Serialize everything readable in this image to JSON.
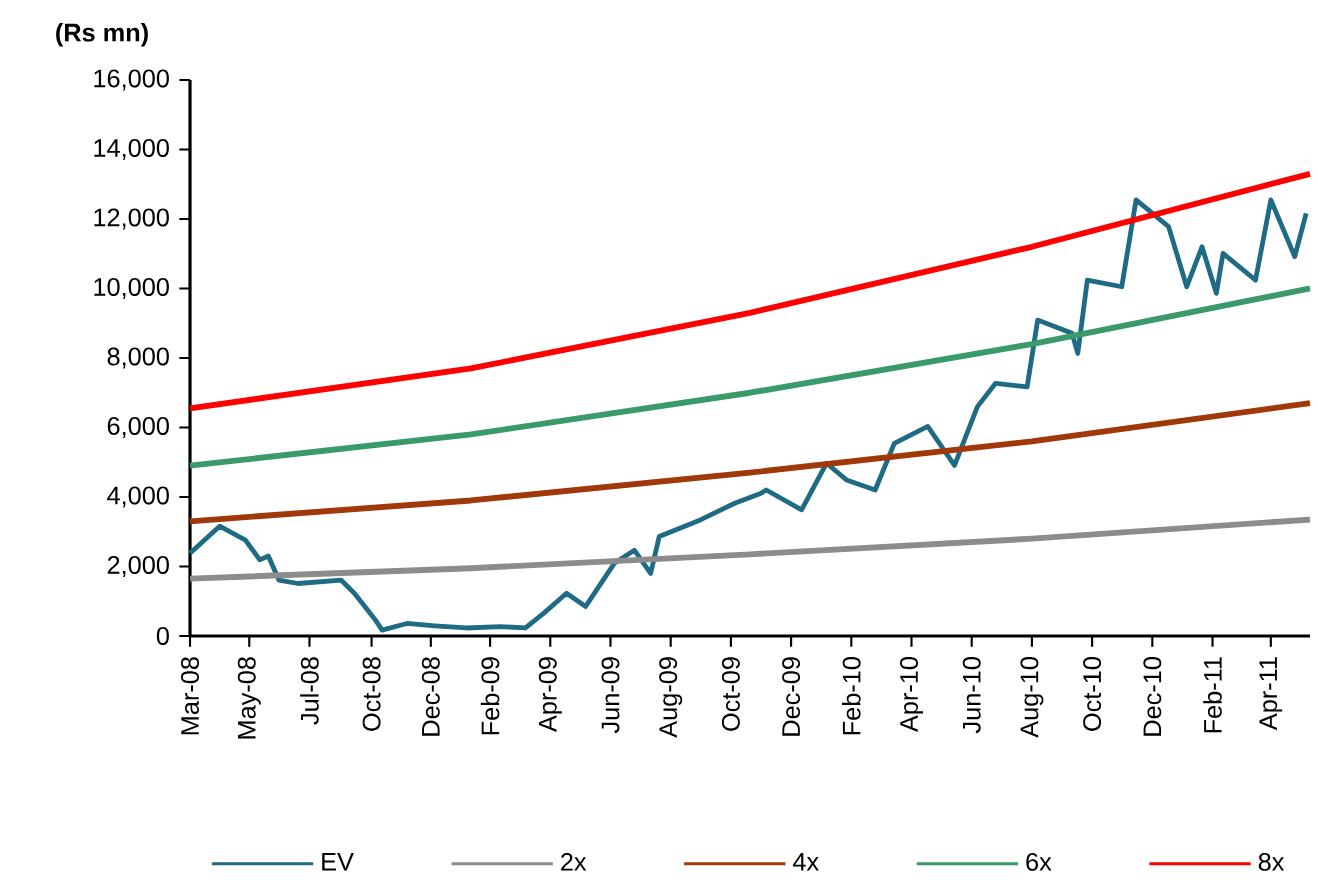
{
  "chart_data": {
    "type": "line",
    "ylabel": "(Rs mn)",
    "xlim": [
      "2008-03-25",
      "2011-06-10"
    ],
    "xticks": [
      {
        "value": "2008-03-25",
        "label": "Mar-08"
      },
      {
        "value": "2008-05-26",
        "label": "May-08"
      },
      {
        "value": "2008-07-28",
        "label": "Jul-08"
      },
      {
        "value": "2008-10-01",
        "label": "Oct-08"
      },
      {
        "value": "2008-12-02",
        "label": "Dec-08"
      },
      {
        "value": "2009-02-02",
        "label": "Feb-09"
      },
      {
        "value": "2009-04-06",
        "label": "Apr-09"
      },
      {
        "value": "2009-06-08",
        "label": "Jun-09"
      },
      {
        "value": "2009-08-10",
        "label": "Aug-09"
      },
      {
        "value": "2009-10-12",
        "label": "Oct-09"
      },
      {
        "value": "2009-12-14",
        "label": "Dec-09"
      },
      {
        "value": "2010-02-15",
        "label": "Feb-10"
      },
      {
        "value": "2010-04-19",
        "label": "Apr-10"
      },
      {
        "value": "2010-06-21",
        "label": "Jun-10"
      },
      {
        "value": "2010-08-23",
        "label": "Aug-10"
      },
      {
        "value": "2010-10-25",
        "label": "Oct-10"
      },
      {
        "value": "2010-12-27",
        "label": "Dec-10"
      },
      {
        "value": "2011-02-28",
        "label": "Feb-11"
      },
      {
        "value": "2011-04-30",
        "label": "Apr-11"
      }
    ],
    "ylim": [
      0,
      16000
    ],
    "yticks": [
      0,
      {
        "value": 2000,
        "label": "2,000"
      },
      {
        "value": 4000,
        "label": "4,000"
      },
      {
        "value": 6000,
        "label": "6,000"
      },
      {
        "value": 8000,
        "label": "8,000"
      },
      {
        "value": 10000,
        "label": "10,000"
      },
      {
        "value": 12000,
        "label": "12,000"
      },
      {
        "value": 14000,
        "label": "14,000"
      },
      {
        "value": 16000,
        "label": "16,000"
      }
    ],
    "legend": "bottom",
    "marker": "none",
    "line_style": "solid",
    "series": [
      {
        "name": "EV",
        "color": "#1f6b85",
        "x": [
          "2008-03-25",
          "2008-04-25",
          "2008-05-22",
          "2008-06-06",
          "2008-06-15",
          "2008-06-26",
          "2008-07-16",
          "2008-08-30",
          "2008-09-13",
          "2008-10-05",
          "2008-10-12",
          "2008-11-07",
          "2008-12-06",
          "2009-01-08",
          "2009-02-13",
          "2009-03-11",
          "2009-03-30",
          "2009-04-23",
          "2009-05-13",
          "2009-06-12",
          "2009-07-03",
          "2009-07-20",
          "2009-07-29",
          "2009-09-10",
          "2009-10-16",
          "2009-11-12",
          "2009-11-18",
          "2009-12-25",
          "2010-01-20",
          "2010-02-10",
          "2010-03-12",
          "2010-04-01",
          "2010-05-06",
          "2010-06-03",
          "2010-06-27",
          "2010-07-16",
          "2010-08-18",
          "2010-08-29",
          "2010-10-04",
          "2010-10-10",
          "2010-10-20",
          "2010-11-25",
          "2010-12-10",
          "2011-01-13",
          "2011-02-01",
          "2011-02-17",
          "2011-03-04",
          "2011-03-11",
          "2011-04-14",
          "2011-04-30",
          "2011-05-25",
          "2011-06-06"
        ],
        "values": [
          2380,
          3160,
          2760,
          2190,
          2300,
          1610,
          1510,
          1610,
          1230,
          460,
          170,
          360,
          290,
          230,
          270,
          230,
          650,
          1230,
          850,
          2090,
          2470,
          1800,
          2860,
          3340,
          3820,
          4100,
          4200,
          3630,
          4970,
          4490,
          4200,
          5540,
          6030,
          4910,
          6600,
          7270,
          7170,
          9090,
          8710,
          8130,
          10240,
          10050,
          12550,
          11780,
          10050,
          11200,
          9860,
          11010,
          10240,
          12550,
          10920,
          12160
        ]
      },
      {
        "name": "2x",
        "color": "#8c8c8c",
        "x": [
          "2008-03-25",
          "2009-01-13",
          "2009-11-01",
          "2010-08-23",
          "2011-06-10"
        ],
        "values": [
          1650,
          1950,
          2350,
          2800,
          3350
        ]
      },
      {
        "name": "4x",
        "color": "#a0380a",
        "x": [
          "2008-03-25",
          "2009-01-13",
          "2009-11-01",
          "2010-08-23",
          "2011-06-10"
        ],
        "values": [
          3300,
          3900,
          4700,
          5600,
          6700
        ]
      },
      {
        "name": "6x",
        "color": "#3a9a6a",
        "x": [
          "2008-03-25",
          "2009-01-13",
          "2009-11-01",
          "2010-08-23",
          "2011-06-10"
        ],
        "values": [
          4900,
          5800,
          7000,
          8400,
          10000
        ]
      },
      {
        "name": "8x",
        "color": "#ff0000",
        "x": [
          "2008-03-25",
          "2009-01-13",
          "2009-11-01",
          "2010-08-23",
          "2011-06-10"
        ],
        "values": [
          6550,
          7700,
          9300,
          11200,
          13300
        ]
      }
    ]
  }
}
